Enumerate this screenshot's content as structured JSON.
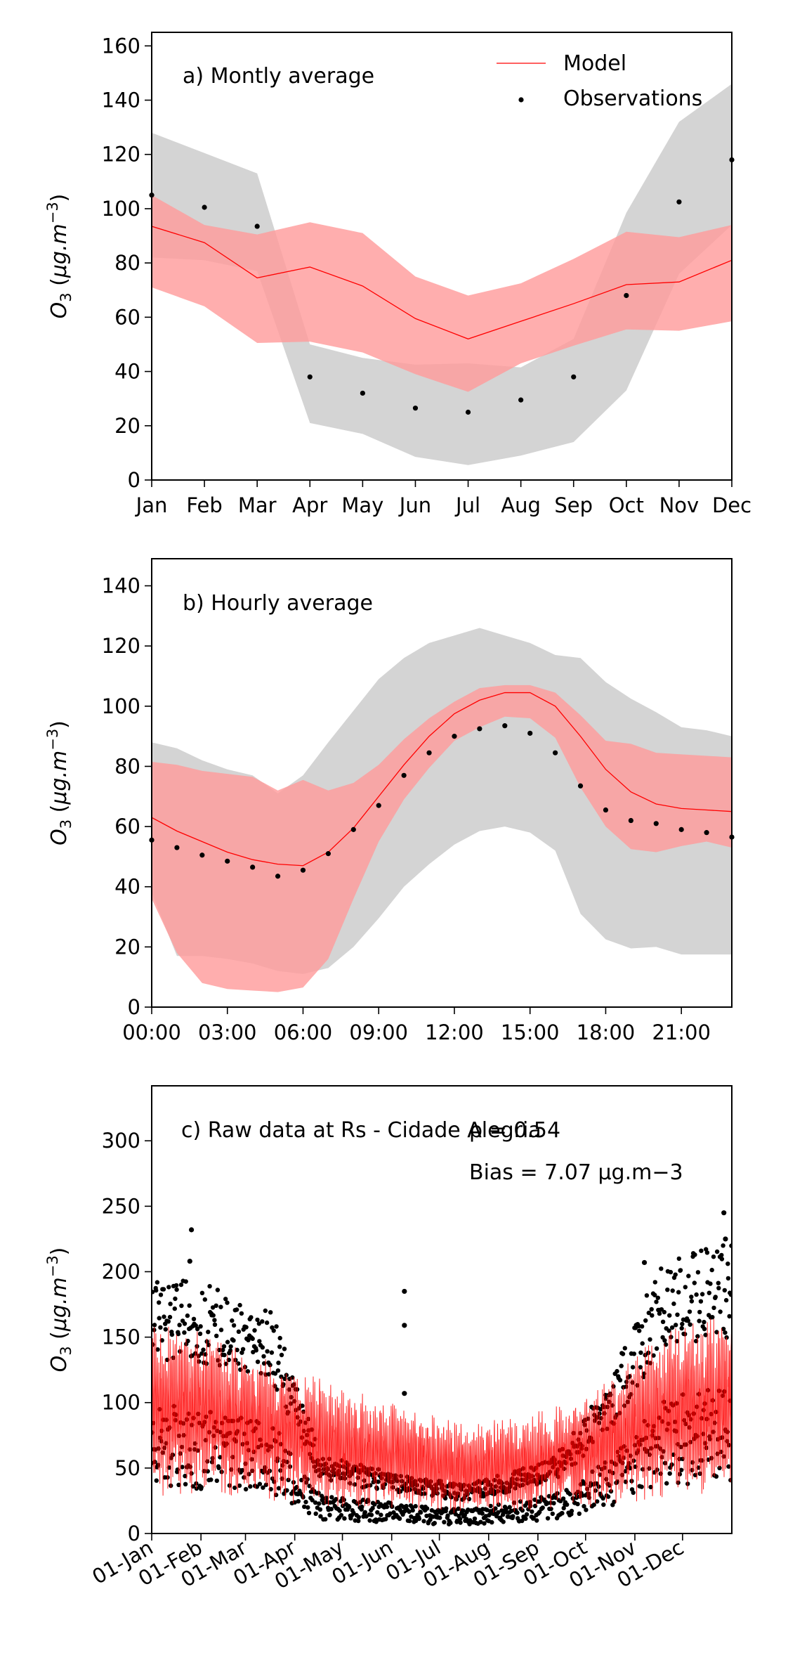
{
  "colors": {
    "model": "#ff0000",
    "model_band": "#ff9a9a",
    "obs": "#000000",
    "obs_band": "#d4d4d4"
  },
  "legend": {
    "model": "Model",
    "observations": "Observations"
  },
  "chart_data": [
    {
      "id": "monthly",
      "type": "line",
      "panel_label": "a) Montly average",
      "ylabel": "O3 (µg.m-3)",
      "ylim": [
        0,
        165
      ],
      "yticks": [
        0,
        20,
        40,
        60,
        80,
        100,
        120,
        140,
        160
      ],
      "categories": [
        "Jan",
        "Feb",
        "Mar",
        "Apr",
        "May",
        "Jun",
        "Jul",
        "Aug",
        "Sep",
        "Oct",
        "Nov",
        "Dec"
      ],
      "series": [
        {
          "name": "Model",
          "values": [
            93.5,
            87.5,
            74.5,
            78.5,
            71.5,
            59.5,
            52,
            58.5,
            65,
            72,
            73,
            81
          ]
        },
        {
          "name": "Observations",
          "values": [
            105,
            100.5,
            93.5,
            38,
            32,
            26.5,
            25,
            29.5,
            38,
            68,
            102.5,
            118
          ]
        }
      ],
      "model_range": {
        "low": [
          71,
          64,
          50.5,
          51,
          47,
          39,
          32.5,
          43,
          49.5,
          55.5,
          55,
          58.5
        ],
        "high": [
          105,
          94,
          90.5,
          95,
          91,
          75,
          68,
          72.5,
          81.5,
          91.5,
          89.5,
          94
        ]
      },
      "obs_range": {
        "low": [
          82,
          81,
          77,
          21,
          17,
          8.5,
          5.5,
          9,
          14,
          33,
          76,
          94
        ],
        "high": [
          128,
          120.5,
          113,
          50,
          45,
          42.5,
          43,
          41.5,
          52,
          98.5,
          132,
          146
        ]
      }
    },
    {
      "id": "hourly",
      "type": "line",
      "panel_label": "b) Hourly average",
      "ylabel": "O3 (µg.m-3)",
      "ylim": [
        0,
        149
      ],
      "yticks": [
        0,
        20,
        40,
        60,
        80,
        100,
        120,
        140
      ],
      "xtick_labels": [
        "00:00",
        "03:00",
        "06:00",
        "09:00",
        "12:00",
        "15:00",
        "18:00",
        "21:00"
      ],
      "x_hours": [
        0,
        1,
        2,
        3,
        4,
        5,
        6,
        7,
        8,
        9,
        10,
        11,
        12,
        13,
        14,
        15,
        16,
        17,
        18,
        19,
        20,
        21,
        22,
        23
      ],
      "series": [
        {
          "name": "Model",
          "values": [
            63,
            58.5,
            55,
            51.5,
            49,
            47.5,
            47,
            51.5,
            59.5,
            70,
            80.5,
            90,
            97.5,
            102,
            104.5,
            104.5,
            100,
            90,
            79,
            71.5,
            67.5,
            66,
            65.5,
            65
          ]
        },
        {
          "name": "Observations",
          "values": [
            55.5,
            53,
            50.5,
            48.5,
            46.5,
            43.5,
            45.5,
            51,
            59,
            67,
            77,
            84.5,
            90,
            92.5,
            93.5,
            91,
            84.5,
            73.5,
            65.5,
            62,
            61,
            59,
            58,
            56.5
          ]
        }
      ],
      "model_range": {
        "low": [
          36,
          18,
          8,
          6,
          5.5,
          5,
          6.5,
          16,
          36,
          55,
          69,
          79.5,
          88.5,
          93,
          96.5,
          96,
          89.5,
          73,
          60,
          52.5,
          51.5,
          53.5,
          55,
          53
        ],
        "high": [
          81.5,
          80.5,
          78.5,
          77.5,
          76.5,
          72,
          75.5,
          72,
          74.5,
          80.5,
          89,
          96,
          101.5,
          106,
          107,
          107,
          104.5,
          97,
          88.5,
          87.5,
          84.5,
          84,
          83.5,
          83
        ]
      },
      "obs_range": {
        "low": [
          38,
          17,
          17,
          16,
          14.5,
          12,
          11,
          13,
          20,
          29.5,
          40,
          47.5,
          54,
          58.5,
          60,
          58,
          52,
          31,
          22.5,
          19.5,
          20,
          17.5,
          17.5,
          17.5
        ],
        "high": [
          88,
          86,
          82,
          79,
          77,
          71,
          77,
          88,
          98.5,
          109,
          116,
          121,
          123.5,
          126,
          123.5,
          121,
          117,
          116,
          108,
          102.5,
          98,
          93,
          92,
          90
        ]
      }
    },
    {
      "id": "raw",
      "type": "scatter",
      "panel_label": "c) Raw data at Rs - Cidade Alegria",
      "r_label": "ρ = 0.54",
      "bias_label": "Bias = 7.07 μg.m−3",
      "ylabel": "O3 (µg.m-3)",
      "ylim": [
        0,
        342
      ],
      "yticks": [
        0,
        50,
        100,
        150,
        200,
        250,
        300
      ],
      "xlim": [
        "2019-01-01",
        "2019-12-31"
      ],
      "xtick_labels": [
        "01-Jan",
        "01-Feb",
        "01-Mar",
        "01-Apr",
        "01-May",
        "01-Jun",
        "01-Jul",
        "01-Aug",
        "01-Sep",
        "01-Oct",
        "01-Nov",
        "01-Dec"
      ],
      "xtick_dates": [
        "2019-01-01",
        "2019-02-01",
        "2019-03-01",
        "2019-04-01",
        "2019-05-01",
        "2019-06-01",
        "2019-07-01",
        "2019-08-01",
        "2019-09-01",
        "2019-10-01",
        "2019-11-01",
        "2019-12-01"
      ],
      "series": [
        {
          "name": "Model",
          "monthly_level": [
            95,
            88,
            78,
            70,
            62,
            55,
            50,
            52,
            58,
            70,
            90,
            98
          ]
        },
        {
          "name": "Observations",
          "monthly_level": [
            115,
            110,
            100,
            35,
            30,
            25,
            22,
            28,
            38,
            70,
            120,
            130
          ]
        }
      ],
      "highlights": [
        {
          "date": "2019-01-26",
          "value": 232
        },
        {
          "date": "2019-01-25",
          "value": 208
        },
        {
          "date": "2019-06-09",
          "value": 185
        },
        {
          "date": "2019-06-09",
          "value": 159
        },
        {
          "date": "2019-06-09",
          "value": 107
        },
        {
          "date": "2019-11-07",
          "value": 207
        },
        {
          "date": "2019-12-27",
          "value": 245
        },
        {
          "date": "2019-12-28",
          "value": 225
        }
      ]
    }
  ]
}
